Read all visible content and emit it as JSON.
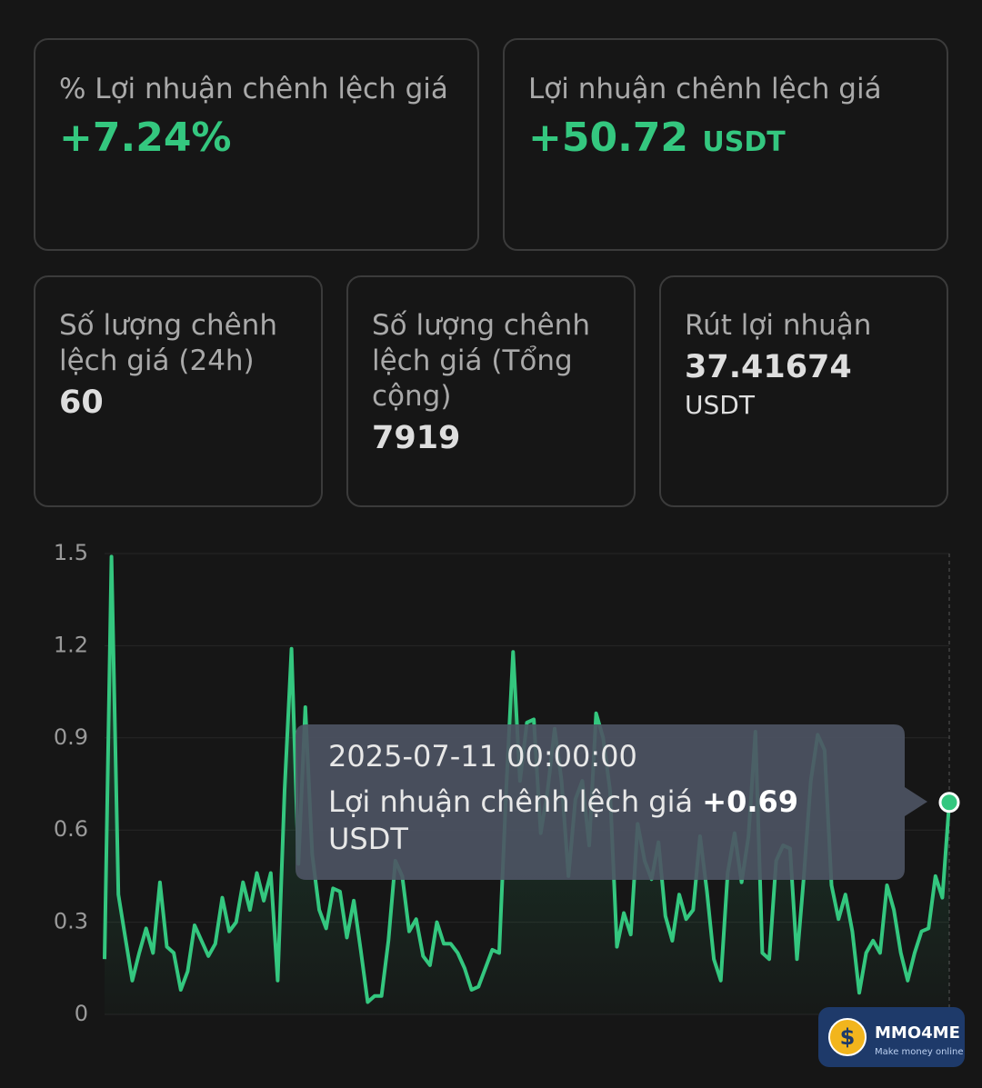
{
  "cards": [
    {
      "label": "% Lợi nhuận chênh lệch giá",
      "value": "+7.24%"
    },
    {
      "label": "Lợi nhuận chênh lệch giá",
      "value": "+50.72",
      "unit": "USDT"
    },
    {
      "label": "Số lượng chênh lệch giá (24h)",
      "value": "60"
    },
    {
      "label": "Số lượng chênh lệch giá (Tổng cộng)",
      "value": "7919"
    },
    {
      "label": "Rút lợi nhuận",
      "value": "37.41674",
      "unit": "USDT"
    }
  ],
  "chart_data": {
    "type": "line",
    "color": "#34c77f",
    "grid": true,
    "ylim": [
      0,
      1.5
    ],
    "yticks": [
      0,
      0.3,
      0.6,
      0.9,
      1.2,
      1.5
    ],
    "values": [
      0.18,
      1.49,
      0.39,
      0.25,
      0.11,
      0.2,
      0.28,
      0.2,
      0.43,
      0.22,
      0.2,
      0.08,
      0.14,
      0.29,
      0.24,
      0.19,
      0.23,
      0.38,
      0.27,
      0.3,
      0.43,
      0.34,
      0.46,
      0.37,
      0.46,
      0.11,
      0.73,
      1.19,
      0.49,
      1.0,
      0.52,
      0.34,
      0.28,
      0.41,
      0.4,
      0.25,
      0.37,
      0.21,
      0.04,
      0.06,
      0.06,
      0.24,
      0.5,
      0.45,
      0.27,
      0.31,
      0.19,
      0.16,
      0.3,
      0.23,
      0.23,
      0.2,
      0.15,
      0.08,
      0.09,
      0.15,
      0.21,
      0.2,
      0.73,
      1.18,
      0.76,
      0.95,
      0.96,
      0.59,
      0.73,
      0.93,
      0.76,
      0.45,
      0.7,
      0.76,
      0.55,
      0.98,
      0.9,
      0.73,
      0.22,
      0.33,
      0.26,
      0.62,
      0.5,
      0.44,
      0.56,
      0.32,
      0.24,
      0.39,
      0.31,
      0.34,
      0.58,
      0.4,
      0.18,
      0.11,
      0.46,
      0.59,
      0.43,
      0.58,
      0.92,
      0.2,
      0.18,
      0.5,
      0.55,
      0.54,
      0.18,
      0.45,
      0.76,
      0.91,
      0.86,
      0.42,
      0.31,
      0.39,
      0.27,
      0.07,
      0.2,
      0.24,
      0.2,
      0.42,
      0.34,
      0.2,
      0.11,
      0.2,
      0.27,
      0.28,
      0.45,
      0.38,
      0.69
    ],
    "tooltip": {
      "x": "2025-07-11 00:00:00",
      "label": "Lợi nhuận chênh lệch giá",
      "value_label": "+0.69",
      "unit": "USDT"
    }
  },
  "watermark": {
    "brand": "MMO4ME",
    "tagline": "Make money online"
  }
}
